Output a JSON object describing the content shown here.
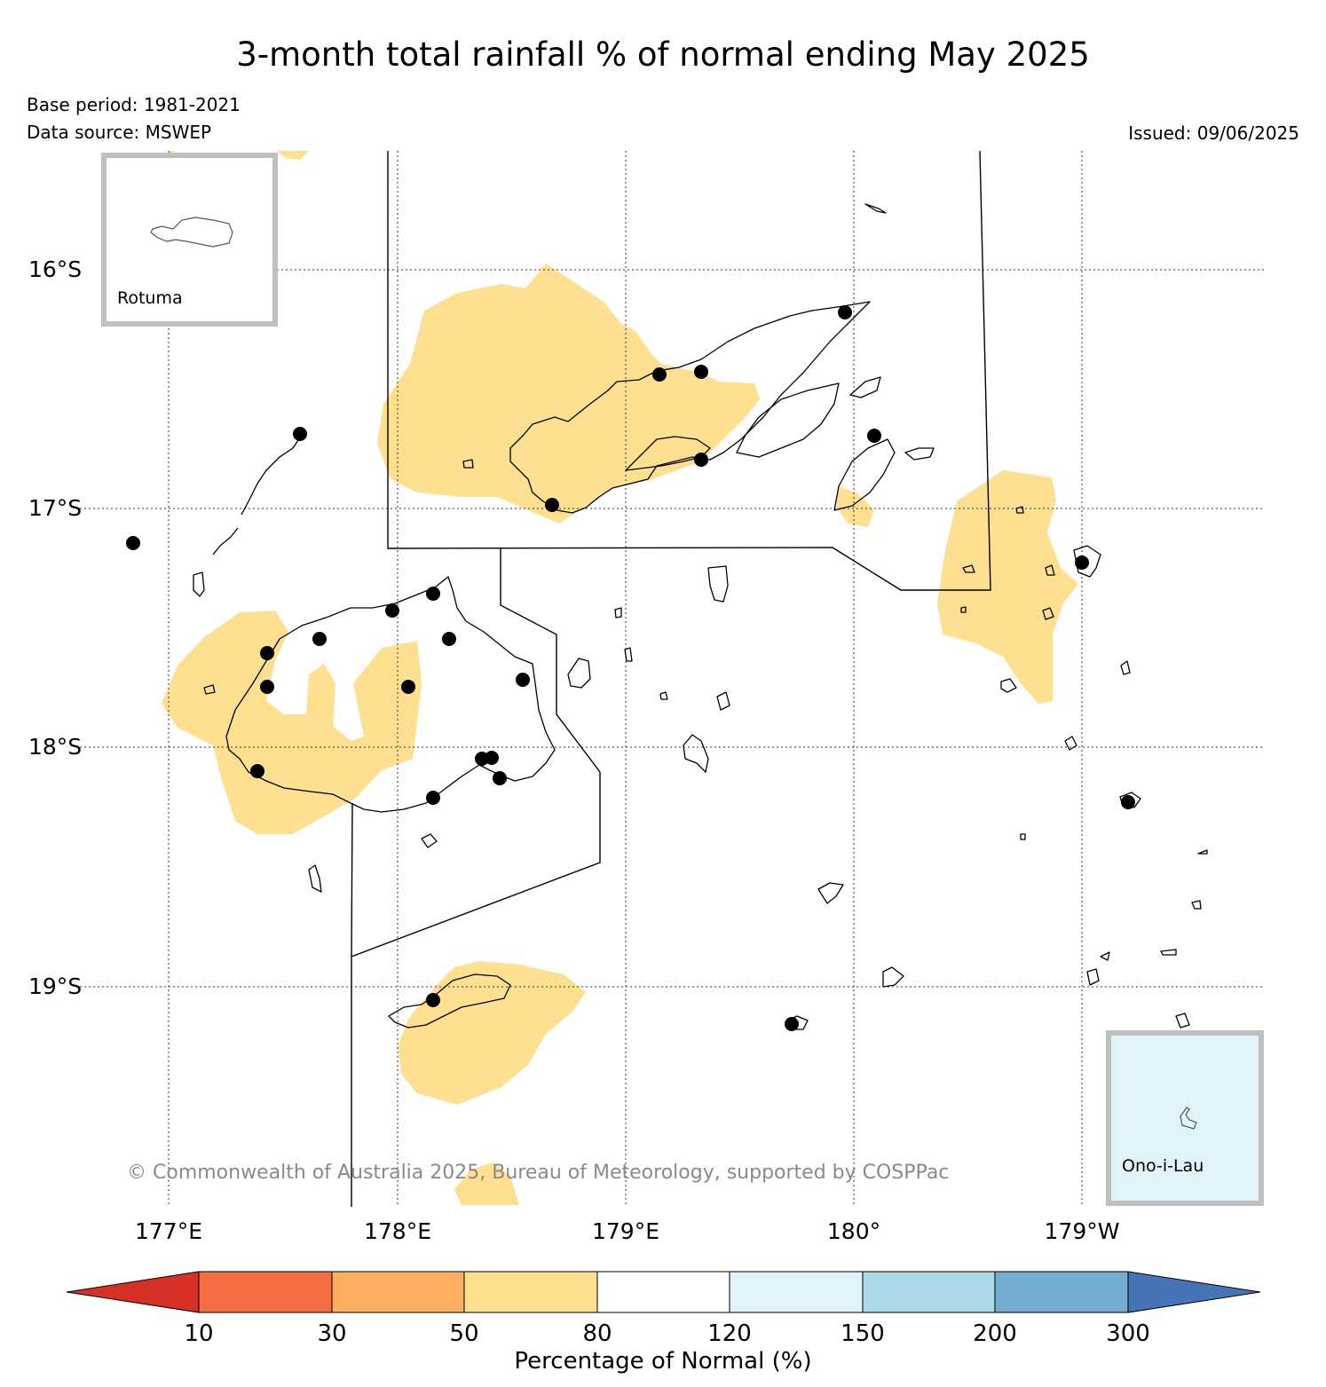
{
  "title": "3-month total rainfall % of normal ending May 2025",
  "base_period": "Base period: 1981-2021",
  "data_source": "Data source: MSWEP",
  "issued": "Issued: 09/06/2025",
  "copyright": "© Commonwealth of Australia 2025, Bureau of Meteorology, supported by COSPPac",
  "lat_labels": [
    "16°S",
    "17°S",
    "18°S",
    "19°S"
  ],
  "lon_labels": [
    "177°E",
    "178°E",
    "179°E",
    "180°",
    "179°W"
  ],
  "insets": {
    "rotuma": "Rotuma",
    "ono_i_lau": "Ono-i-Lau"
  },
  "colorbar": {
    "title": "Percentage of Normal (%)",
    "ticks": [
      "10",
      "30",
      "50",
      "80",
      "120",
      "150",
      "200",
      "300"
    ],
    "colors": {
      "below_10": "#d73027",
      "10_30": "#f46d43",
      "30_50": "#fdae61",
      "50_80": "#fee090",
      "80_120": "#ffffff",
      "120_150": "#e0f3f8",
      "150_200": "#abd9e9",
      "200_300": "#74add1",
      "above_300": "#4575b4"
    }
  },
  "map_colors": {
    "rain_50_80": "#fee090",
    "ono_i_lau_inset": "#e0f3f8",
    "stations": "#000000",
    "inset_frame": "#c0c0c0"
  }
}
